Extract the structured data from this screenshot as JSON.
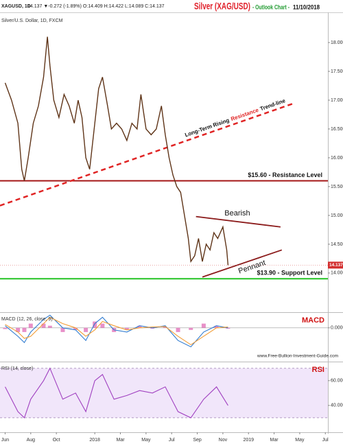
{
  "header": {
    "symbol": "XAGUSD, 1D",
    "quote": "14.137 ▼-0.272 (-1.89%) O:14.409 H:14.422 L:14.089 C:14.137",
    "title": "Silver (XAG/USD)",
    "subtitle": "- Outlook Chart -",
    "date": "11/10/2018"
  },
  "chart_data": [
    {
      "type": "line",
      "title": "Silver/U.S. Dollar, 1D, FXCM",
      "x": [
        0,
        0.5,
        1.0,
        1.3,
        1.5,
        1.8,
        2.2,
        2.6,
        3.0,
        3.3,
        3.5,
        3.8,
        4.2,
        4.6,
        5.0,
        5.4,
        5.7,
        6.0,
        6.3,
        6.6,
        7.0,
        7.3,
        7.6,
        8.0,
        8.3,
        8.7,
        9.1,
        9.5,
        9.9,
        10.3,
        10.6,
        11.0,
        11.4,
        11.8,
        12.2,
        12.5,
        12.8,
        13.1,
        13.4,
        13.7,
        14.0,
        14.3,
        14.5,
        14.8,
        15.1,
        15.4,
        15.7,
        16.0,
        16.3,
        16.6,
        17.0,
        17.3,
        17.4
      ],
      "series": [
        {
          "color": "#5e3317",
          "values": [
            17.3,
            17.0,
            16.6,
            15.8,
            15.6,
            16.0,
            16.6,
            16.9,
            17.4,
            18.1,
            17.6,
            17.0,
            16.7,
            17.1,
            16.9,
            16.6,
            17.0,
            16.7,
            16.0,
            15.8,
            16.6,
            17.2,
            17.4,
            16.9,
            16.5,
            16.6,
            16.5,
            16.3,
            16.6,
            16.5,
            17.1,
            16.5,
            16.4,
            16.5,
            16.9,
            16.4,
            16.0,
            15.7,
            15.5,
            15.4,
            15.0,
            14.6,
            14.2,
            14.3,
            14.6,
            14.2,
            14.5,
            14.4,
            14.7,
            14.6,
            14.8,
            14.4,
            14.137
          ]
        }
      ],
      "xlim": [
        -0.4,
        25.2
      ],
      "ylim": [
        13.32,
        18.5
      ],
      "yticks": [
        {
          "value": 14,
          "label": "14.000"
        },
        {
          "value": 14.5,
          "label": "14.500"
        },
        {
          "value": 15,
          "label": "15.000"
        },
        {
          "value": 15.5,
          "label": "15.500"
        },
        {
          "value": 16,
          "label": "16.000"
        },
        {
          "value": 16.5,
          "label": "16.500"
        },
        {
          "value": 17,
          "label": "17.000"
        },
        {
          "value": 17.5,
          "label": "17.500"
        },
        {
          "value": 18,
          "label": "18.000"
        }
      ],
      "levels": [
        {
          "value": 15.6,
          "label": "$15.60 - Resistance Level",
          "color": "#a31515"
        },
        {
          "value": 13.9,
          "label": "$13.90 - Support Level",
          "color": "#22c322"
        }
      ],
      "trendlines": [
        {
          "x": [
            -0.4,
            22.6
          ],
          "y": [
            15.17,
            16.95
          ],
          "color": "#e02424",
          "dashed": true
        },
        {
          "x": [
            14.9,
            21.5
          ],
          "y": [
            14.98,
            14.8
          ],
          "color": "#8b1a1a",
          "dashed": false
        },
        {
          "x": [
            15.4,
            21.6
          ],
          "y": [
            13.93,
            14.4
          ],
          "color": "#8b1a1a",
          "dashed": false
        }
      ],
      "trend_label": [
        "Long-Term Rising",
        "Resistance",
        "Trend-line"
      ],
      "pennant_labels": [
        "Bearish",
        "Pennant"
      ]
    },
    {
      "type": "line",
      "title": "MACD (12, 26, close, 9)",
      "label": "MACD",
      "watermark": "www.Free-Bullion-Investment-Guide.com",
      "x": [
        0,
        1,
        1.5,
        2,
        3,
        3.5,
        4.5,
        5.5,
        6.3,
        7,
        7.6,
        8.5,
        9.5,
        10.5,
        11.5,
        12.5,
        13.5,
        14.5,
        15.5,
        16.5,
        17.4
      ],
      "series": [
        {
          "color": "#2f7bd1",
          "values": [
            0.05,
            -0.2,
            -0.35,
            -0.1,
            0.2,
            0.3,
            0.0,
            -0.05,
            -0.3,
            0.1,
            0.25,
            -0.05,
            -0.1,
            0.05,
            0.0,
            0.05,
            -0.3,
            -0.45,
            -0.1,
            0.05,
            0.0
          ]
        },
        {
          "color": "#f39c34",
          "values": [
            0.08,
            -0.1,
            -0.25,
            -0.2,
            0.1,
            0.25,
            0.1,
            0.0,
            -0.2,
            -0.05,
            0.15,
            0.05,
            -0.05,
            0.0,
            0.02,
            0.03,
            -0.2,
            -0.4,
            -0.2,
            0.0,
            0.02
          ]
        }
      ],
      "histogram": {
        "color": "#e06bb5",
        "values": [
          -0.03,
          -0.1,
          -0.1,
          0.1,
          0.1,
          0.05,
          -0.1,
          -0.05,
          -0.1,
          0.15,
          0.1,
          -0.1,
          -0.05,
          0.05,
          -0.02,
          0.02,
          -0.1,
          -0.05,
          0.1,
          0.05,
          -0.02
        ]
      },
      "xlim": [
        -0.4,
        25.2
      ],
      "ylim": [
        -0.8,
        0.37
      ],
      "yticks": [
        {
          "value": 0,
          "label": "0.0000"
        }
      ]
    },
    {
      "type": "line",
      "title": "RSI (14, close)",
      "label": "RSI",
      "x": [
        0,
        1,
        1.5,
        2,
        3,
        3.5,
        4.5,
        5.5,
        6.3,
        7,
        7.6,
        8.5,
        9.5,
        10.5,
        11.5,
        12.5,
        13.5,
        14.5,
        15.5,
        16.5,
        17.4
      ],
      "series": [
        {
          "color": "#a040c0",
          "values": [
            55,
            35,
            30,
            45,
            60,
            70,
            45,
            50,
            35,
            60,
            65,
            45,
            48,
            52,
            50,
            55,
            35,
            30,
            45,
            55,
            40
          ]
        }
      ],
      "band": [
        30,
        70
      ],
      "xlim": [
        -0.4,
        25.2
      ],
      "ylim": [
        18.3,
        75.4
      ],
      "yticks": [
        {
          "value": 40,
          "label": "40.0000"
        },
        {
          "value": 60,
          "label": "60.0000"
        }
      ],
      "xticks": [
        {
          "value": 0,
          "label": "Jun"
        },
        {
          "value": 2,
          "label": "Aug"
        },
        {
          "value": 4,
          "label": "Oct"
        },
        {
          "value": 7,
          "label": "2018"
        },
        {
          "value": 9,
          "label": "Mar"
        },
        {
          "value": 11,
          "label": "May"
        },
        {
          "value": 13,
          "label": "Jul"
        },
        {
          "value": 15,
          "label": "Sep"
        },
        {
          "value": 17,
          "label": "Nov"
        },
        {
          "value": 19,
          "label": "2019"
        },
        {
          "value": 21,
          "label": "Mar"
        },
        {
          "value": 23,
          "label": "May"
        },
        {
          "value": 25,
          "label": "Jul"
        }
      ]
    }
  ]
}
